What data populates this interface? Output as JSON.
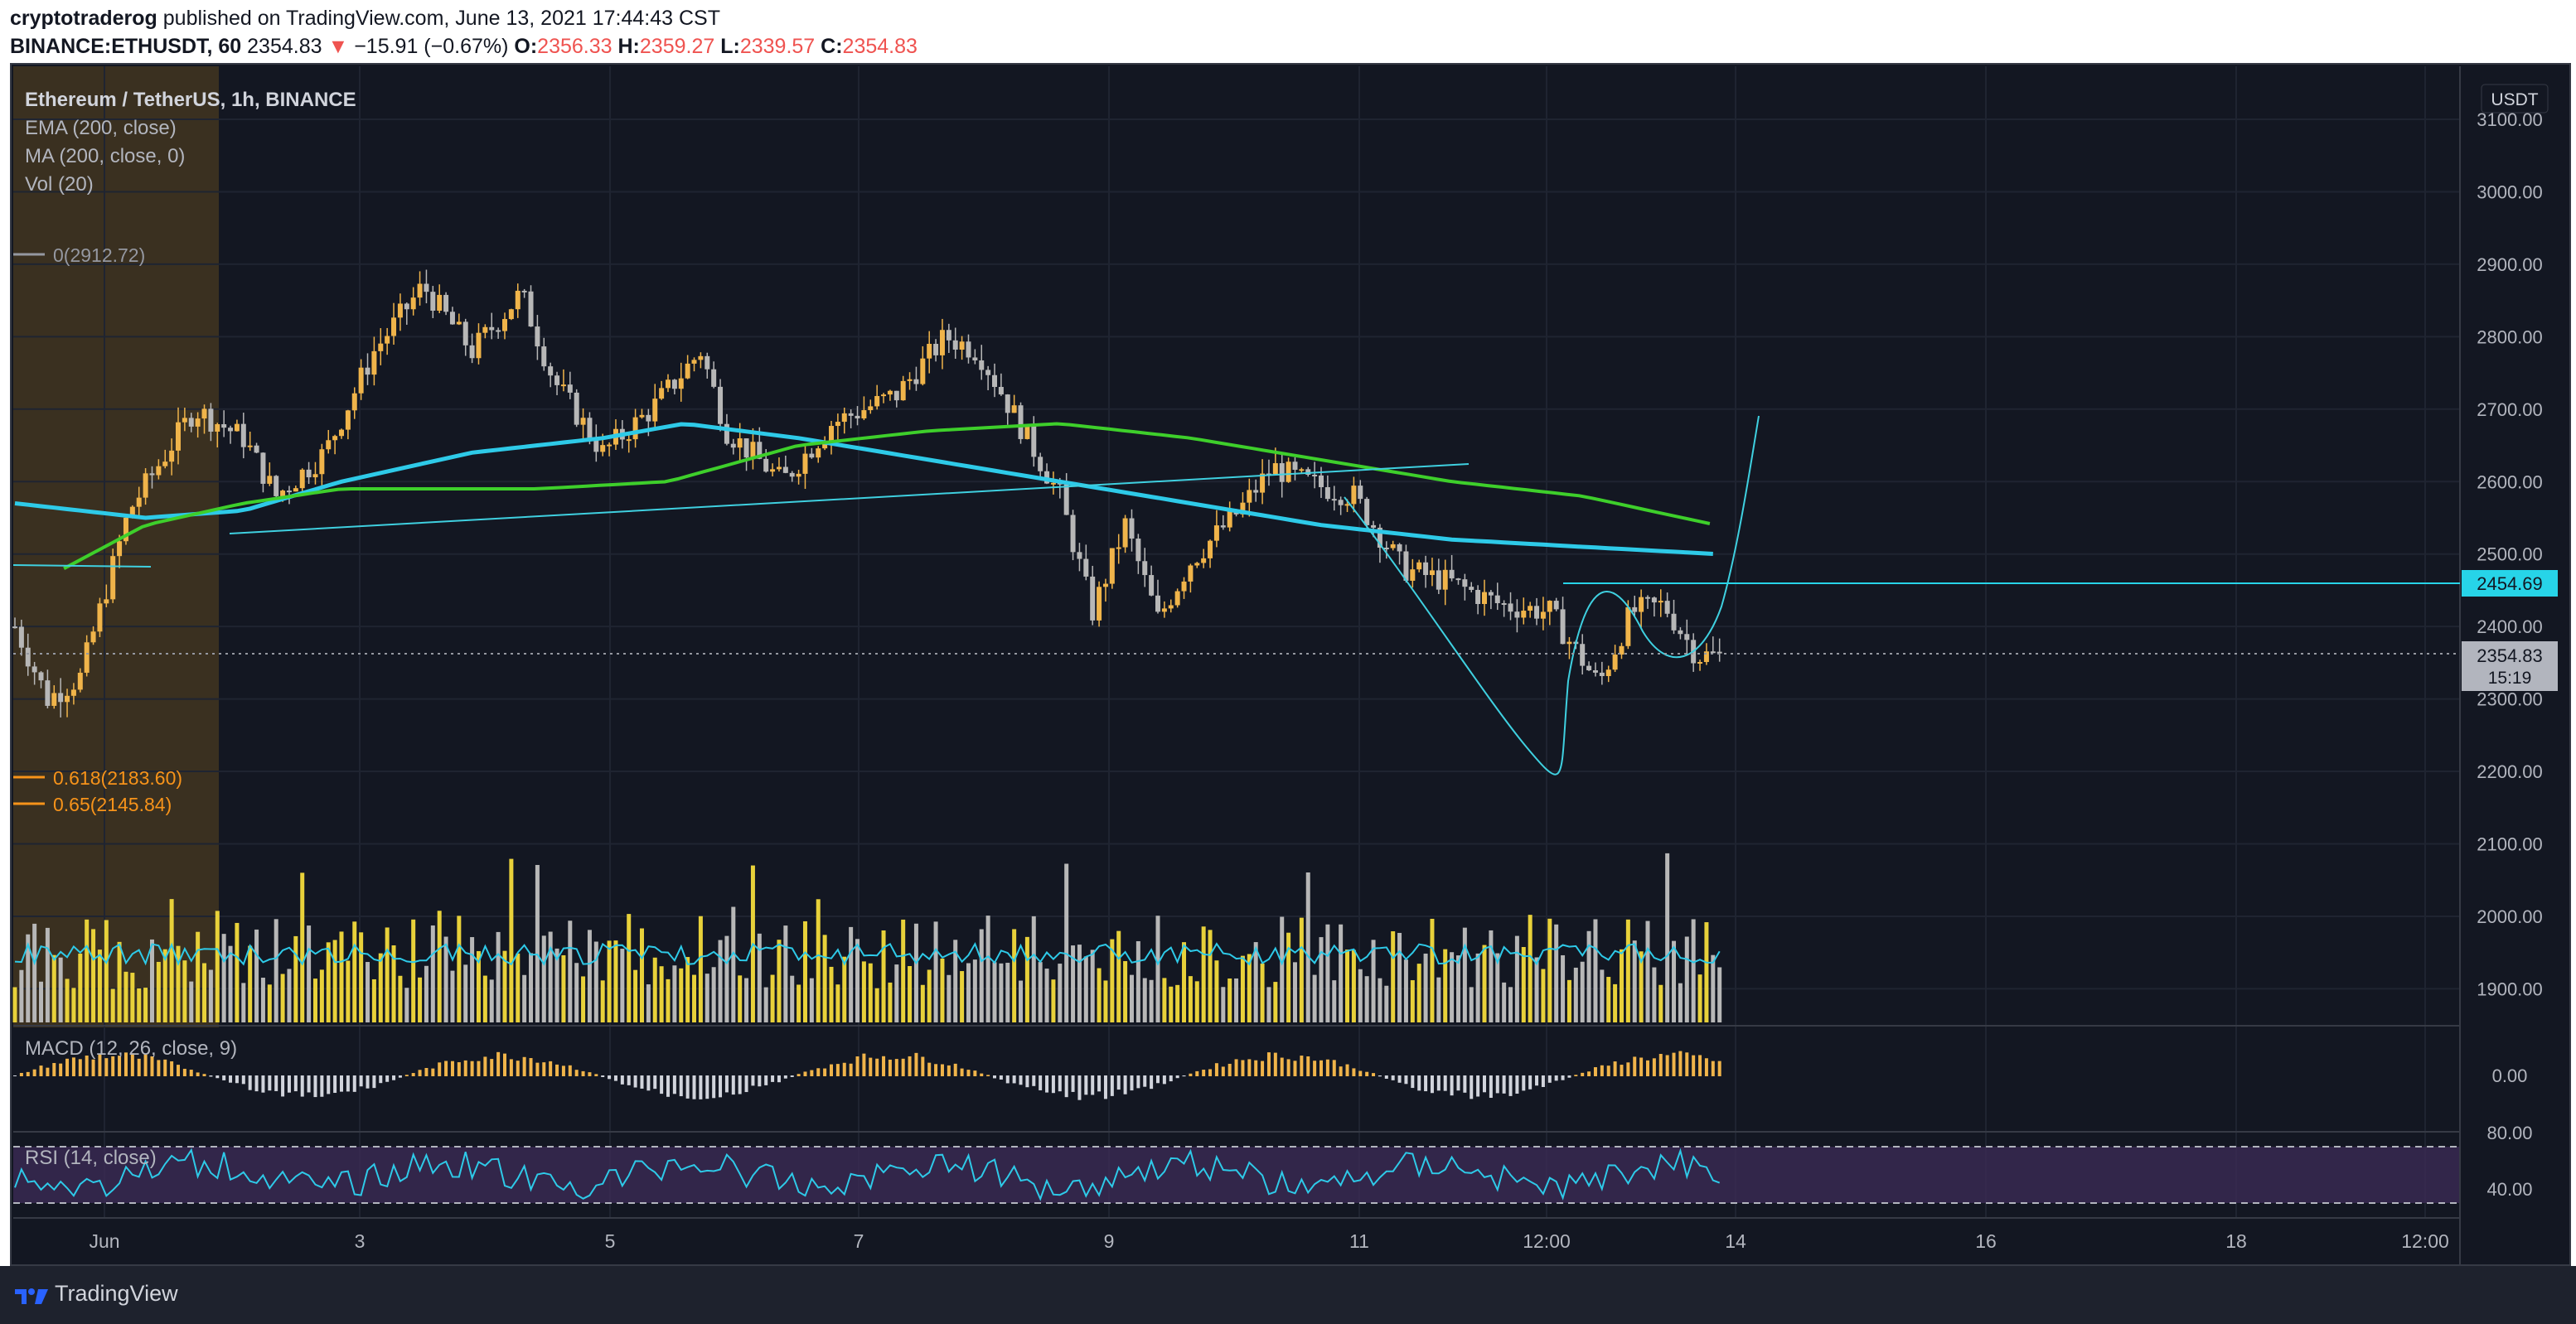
{
  "header": {
    "author": "cryptotraderog",
    "published_text": "published on TradingView.com, June 13, 2021 17:44:43 CST",
    "symbol": "BINANCE:ETHUSDT, 60",
    "last": "2354.83",
    "change": "−15.91 (−0.67%)",
    "open_label": "O:",
    "open": "2356.33",
    "high_label": "H:",
    "high": "2359.27",
    "low_label": "L:",
    "low": "2339.57",
    "close_label": "C:",
    "close": "2354.83"
  },
  "legend": {
    "title": "Ethereum / TetherUS, 1h, BINANCE",
    "ema": "EMA (200, close)",
    "ma": "MA (200, close, 0)",
    "vol": "Vol (20)",
    "macd": "MACD (12, 26, close, 9)",
    "rsi": "RSI (14, close)"
  },
  "fib": {
    "level0": "0(2912.72)",
    "level618": "0.618(2183.60)",
    "level65": "0.65(2145.84)"
  },
  "price_axis": {
    "currency": "USDT",
    "ticks": [
      "3100.00",
      "3000.00",
      "2900.00",
      "2800.00",
      "2700.00",
      "2600.00",
      "2500.00",
      "2400.00",
      "2300.00",
      "2200.00",
      "2100.00",
      "2000.00",
      "1900.00"
    ],
    "resistance_label": "2454.69",
    "last_label": "2354.83",
    "countdown": "15:19",
    "macd_tick": "0.00",
    "rsi_ticks": [
      "80.00",
      "40.00"
    ]
  },
  "time_axis": [
    "Jun",
    "3",
    "5",
    "7",
    "9",
    "11",
    "12:00",
    "14",
    "16",
    "18",
    "12:00"
  ],
  "colors": {
    "bg": "#131722",
    "up": "#f0b44a",
    "down": "#b7b7b7",
    "ema": "#2ecae8",
    "ma": "#3ecf2b",
    "line": "#3fd0e0",
    "fib_shade": "#3a3020",
    "rsi_band": "#3b2a55",
    "resistance": "#27d4e8"
  },
  "footer": {
    "brand": "TradingView"
  },
  "chart_data": {
    "type": "candlestick",
    "title": "Ethereum / TetherUS, 1h, BINANCE",
    "ylabel": "USDT",
    "ylim": [
      1850,
      3130
    ],
    "price_path": [
      [
        0,
        2400
      ],
      [
        10,
        2300
      ],
      [
        20,
        2330
      ],
      [
        35,
        2560
      ],
      [
        55,
        2700
      ],
      [
        70,
        2660
      ],
      [
        80,
        2580
      ],
      [
        95,
        2640
      ],
      [
        110,
        2780
      ],
      [
        125,
        2870
      ],
      [
        140,
        2780
      ],
      [
        155,
        2860
      ],
      [
        165,
        2740
      ],
      [
        180,
        2640
      ],
      [
        195,
        2700
      ],
      [
        210,
        2780
      ],
      [
        218,
        2670
      ],
      [
        235,
        2600
      ],
      [
        250,
        2680
      ],
      [
        270,
        2720
      ],
      [
        285,
        2800
      ],
      [
        295,
        2780
      ],
      [
        305,
        2700
      ],
      [
        320,
        2580
      ],
      [
        330,
        2420
      ],
      [
        340,
        2540
      ],
      [
        350,
        2410
      ],
      [
        360,
        2490
      ],
      [
        375,
        2560
      ],
      [
        385,
        2620
      ],
      [
        395,
        2600
      ],
      [
        410,
        2580
      ],
      [
        425,
        2480
      ],
      [
        440,
        2460
      ],
      [
        455,
        2430
      ],
      [
        470,
        2420
      ],
      [
        485,
        2320
      ],
      [
        495,
        2420
      ],
      [
        505,
        2430
      ],
      [
        515,
        2360
      ],
      [
        521,
        2360
      ]
    ],
    "ema200": [
      [
        0,
        2570
      ],
      [
        40,
        2550
      ],
      [
        70,
        2560
      ],
      [
        100,
        2600
      ],
      [
        140,
        2640
      ],
      [
        180,
        2660
      ],
      [
        205,
        2680
      ],
      [
        240,
        2660
      ],
      [
        280,
        2630
      ],
      [
        320,
        2600
      ],
      [
        360,
        2570
      ],
      [
        400,
        2540
      ],
      [
        440,
        2520
      ],
      [
        480,
        2510
      ],
      [
        521,
        2500
      ]
    ],
    "ma200": [
      [
        15,
        2480
      ],
      [
        40,
        2540
      ],
      [
        70,
        2570
      ],
      [
        100,
        2590
      ],
      [
        130,
        2590
      ],
      [
        160,
        2590
      ],
      [
        200,
        2600
      ],
      [
        240,
        2650
      ],
      [
        280,
        2670
      ],
      [
        320,
        2680
      ],
      [
        360,
        2660
      ],
      [
        400,
        2630
      ],
      [
        440,
        2600
      ],
      [
        480,
        2580
      ],
      [
        521,
        2540
      ]
    ],
    "resistance": 2454.69,
    "fib_levels": [
      {
        "label": "0",
        "value": 2912.72
      },
      {
        "label": "0.618",
        "value": 2183.6
      },
      {
        "label": "0.65",
        "value": 2145.84
      }
    ],
    "x_tick_labels": [
      "Jun",
      "3",
      "5",
      "7",
      "9",
      "11",
      "12:00",
      "14",
      "16",
      "18",
      "12:00"
    ],
    "last_price": 2354.83
  }
}
